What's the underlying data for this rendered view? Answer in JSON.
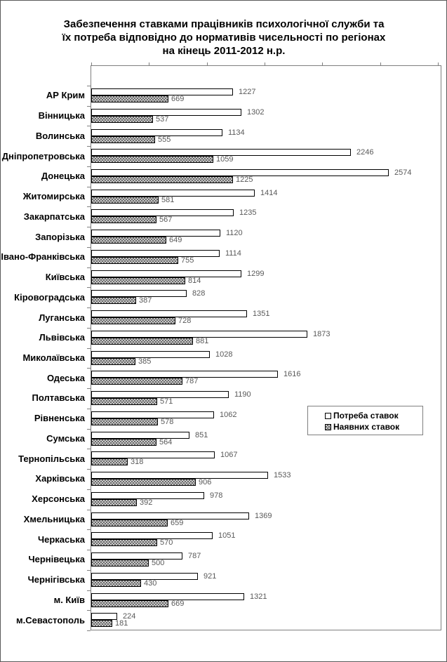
{
  "title": "Забезпечення ставками працівників психологічної служби та їх потреба відповідно до нормативів чисельності по регіонах на кінець 2011-2012 н.р.",
  "chart_data": {
    "type": "bar",
    "orientation": "horizontal",
    "title": "Забезпечення ставками працівників психологічної служби та їх потреба відповідно до нормативів чисельності по регіонах на кінець 2011-2012 н.р.",
    "categories": [
      "АР Крим",
      "Вінницька",
      "Волинська",
      "Дніпропетровська",
      "Донецька",
      "Житомирська",
      "Закарпатська",
      "Запорізька",
      "Івано-Франківська",
      "Київська",
      "Кіровоградська",
      "Луганська",
      "Львівська",
      "Миколаївська",
      "Одеська",
      "Полтавська",
      "Рівненська",
      "Сумська",
      "Тернопільська",
      "Харківська",
      "Херсонська",
      "Хмельницька",
      "Черкаська",
      "Чернівецька",
      "Чернігівська",
      "м. Київ",
      "м.Севастополь"
    ],
    "series": [
      {
        "name": "Потреба ставок",
        "style": "white",
        "values": [
          1227,
          1302,
          1134,
          2246,
          2574,
          1414,
          1235,
          1120,
          1114,
          1299,
          828,
          1351,
          1873,
          1028,
          1616,
          1190,
          1062,
          851,
          1067,
          1533,
          978,
          1369,
          1051,
          787,
          921,
          1321,
          224
        ]
      },
      {
        "name": "Наявних ставок",
        "style": "hatched",
        "values": [
          669,
          537,
          555,
          1059,
          1225,
          581,
          567,
          649,
          755,
          814,
          387,
          728,
          881,
          385,
          787,
          571,
          578,
          564,
          318,
          906,
          392,
          659,
          570,
          500,
          430,
          669,
          181
        ]
      }
    ],
    "value_axis": {
      "min": 0,
      "max": 3000,
      "tick_interval": 500,
      "tick_labels_visible": false
    },
    "legend": {
      "position": "middle-right",
      "border": true
    },
    "grid": false,
    "data_labels_visible": true,
    "colors": {
      "need_bar_fill": "#ffffff",
      "available_bar_pattern": "gray-checker",
      "bar_border": "#000000",
      "value_label_text": "#595959",
      "axis_line": "#7f7f7f"
    }
  }
}
